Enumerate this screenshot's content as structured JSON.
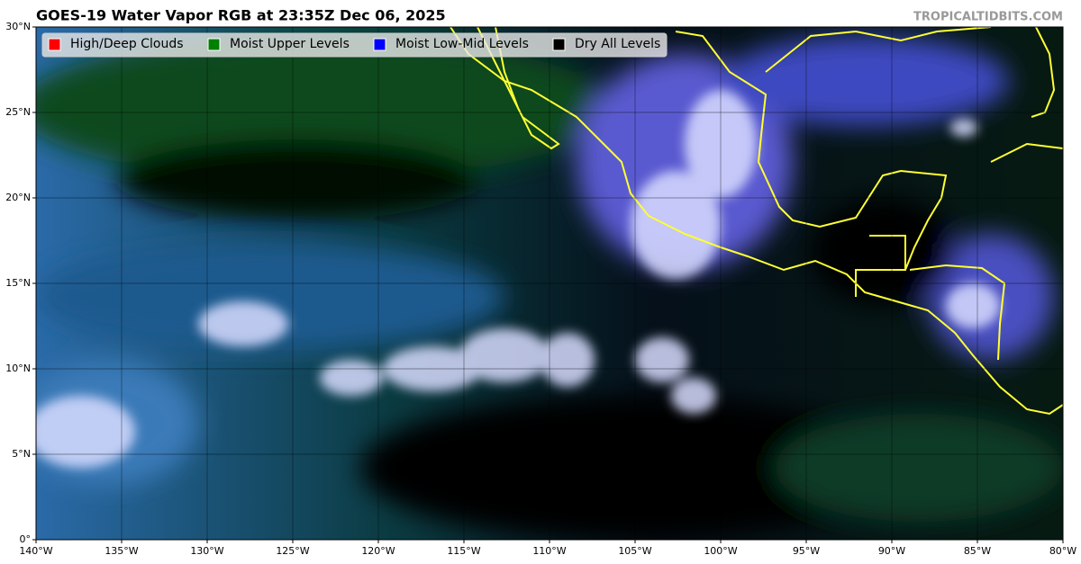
{
  "header": {
    "title": "GOES-19 Water Vapor RGB at 23:35Z Dec 06, 2025",
    "credit": "TROPICALTIDBITS.COM"
  },
  "legend": [
    {
      "name": "High/Deep Clouds",
      "color": "#ff0000"
    },
    {
      "name": "Moist Upper Levels",
      "color": "#008000"
    },
    {
      "name": "Moist Low-Mid Levels",
      "color": "#0000ff"
    },
    {
      "name": "Dry All Levels",
      "color": "#000000"
    }
  ],
  "map": {
    "xticks": [
      "140°W",
      "135°W",
      "130°W",
      "125°W",
      "120°W",
      "115°W",
      "110°W",
      "105°W",
      "100°W",
      "95°W",
      "90°W",
      "85°W",
      "80°W"
    ],
    "yticks": [
      "0°",
      "5°N",
      "10°N",
      "15°N",
      "20°N",
      "25°N",
      "30°N"
    ]
  }
}
